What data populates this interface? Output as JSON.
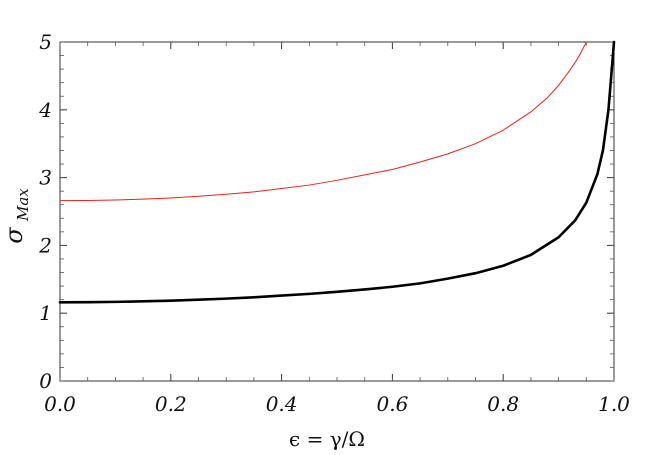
{
  "chart_data": {
    "type": "line",
    "xlabel": "ϵ = γ/Ω",
    "ylabel": {
      "base": "σ",
      "subscript": "Max"
    },
    "xlim": [
      0,
      1
    ],
    "ylim": [
      0,
      5
    ],
    "x_ticks": [
      0.0,
      0.2,
      0.4,
      0.6,
      0.8,
      1.0
    ],
    "x_tick_labels": [
      "0.0",
      "0.2",
      "0.4",
      "0.6",
      "0.8",
      "1.0"
    ],
    "y_ticks": [
      0,
      1,
      2,
      3,
      4,
      5
    ],
    "y_tick_labels": [
      "0",
      "1",
      "2",
      "3",
      "4",
      "5"
    ],
    "grid": false,
    "series": [
      {
        "color": "#e8221d",
        "line_style": "thin",
        "x": [
          0.0,
          0.05,
          0.1,
          0.15,
          0.2,
          0.25,
          0.3,
          0.35,
          0.4,
          0.45,
          0.5,
          0.55,
          0.6,
          0.65,
          0.7,
          0.75,
          0.8,
          0.85,
          0.88,
          0.9,
          0.92,
          0.93,
          0.94,
          0.945,
          0.95
        ],
        "y": [
          2.66,
          2.663,
          2.67,
          2.683,
          2.7,
          2.725,
          2.755,
          2.79,
          2.84,
          2.89,
          2.96,
          3.04,
          3.12,
          3.23,
          3.35,
          3.5,
          3.7,
          3.97,
          4.18,
          4.36,
          4.58,
          4.7,
          4.84,
          4.92,
          5.0
        ]
      },
      {
        "color": "#000000",
        "line_style": "thick",
        "x": [
          0.0,
          0.05,
          0.1,
          0.15,
          0.2,
          0.25,
          0.3,
          0.35,
          0.4,
          0.45,
          0.5,
          0.55,
          0.6,
          0.65,
          0.7,
          0.75,
          0.8,
          0.85,
          0.9,
          0.93,
          0.95,
          0.97,
          0.98,
          0.99,
          0.995,
          1.0
        ],
        "y": [
          1.16,
          1.162,
          1.167,
          1.175,
          1.185,
          1.2,
          1.215,
          1.235,
          1.26,
          1.285,
          1.315,
          1.35,
          1.39,
          1.44,
          1.51,
          1.59,
          1.7,
          1.86,
          2.12,
          2.37,
          2.63,
          3.05,
          3.4,
          4.0,
          4.5,
          5.0
        ]
      }
    ]
  }
}
